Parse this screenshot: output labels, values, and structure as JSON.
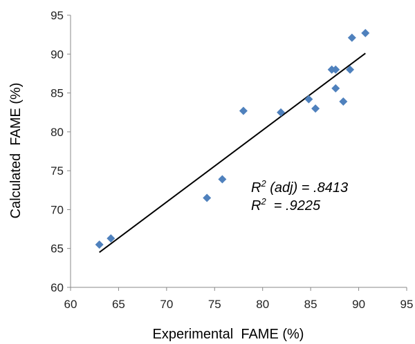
{
  "chart_data": {
    "type": "scatter",
    "title": "",
    "xlabel": "Experimental  FAME (%)",
    "ylabel": "Calculated  FAME (%)",
    "xlim": [
      60,
      95
    ],
    "ylim": [
      60,
      95
    ],
    "xticks": [
      60,
      65,
      70,
      75,
      80,
      85,
      90,
      95
    ],
    "yticks": [
      60,
      65,
      70,
      75,
      80,
      85,
      90,
      95
    ],
    "grid": false,
    "legend": "none",
    "marker": "diamond",
    "marker_color": "#4F81BD",
    "series": [
      {
        "points": [
          {
            "x": 63.0,
            "y": 65.5
          },
          {
            "x": 64.2,
            "y": 66.3
          },
          {
            "x": 74.2,
            "y": 71.5
          },
          {
            "x": 75.8,
            "y": 73.9
          },
          {
            "x": 78.0,
            "y": 82.7
          },
          {
            "x": 81.9,
            "y": 82.5
          },
          {
            "x": 84.8,
            "y": 84.2
          },
          {
            "x": 85.5,
            "y": 83.0
          },
          {
            "x": 87.2,
            "y": 88.0
          },
          {
            "x": 87.6,
            "y": 88.0
          },
          {
            "x": 87.6,
            "y": 85.6
          },
          {
            "x": 88.4,
            "y": 83.9
          },
          {
            "x": 89.1,
            "y": 88.0
          },
          {
            "x": 89.3,
            "y": 92.1
          },
          {
            "x": 90.7,
            "y": 92.7
          }
        ]
      }
    ],
    "trendline": {
      "x": [
        63.0,
        90.7
      ],
      "y": [
        64.5,
        90.1
      ],
      "color": "#000000"
    },
    "annotations": [
      {
        "base": "R",
        "sup": "2",
        "rest": " (adj) = .8413"
      },
      {
        "base": "R",
        "sup": "2",
        "rest": "  = .9225"
      }
    ]
  }
}
